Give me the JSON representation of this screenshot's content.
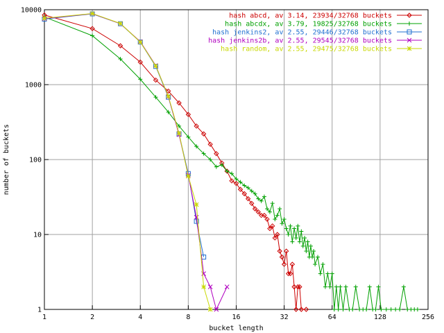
{
  "chart_data": {
    "type": "line",
    "title": "",
    "xlabel": "bucket length",
    "ylabel": "number of buckets",
    "xscale": "log2",
    "yscale": "log10",
    "xlim": [
      1,
      256
    ],
    "ylim": [
      1,
      10000
    ],
    "grid": true,
    "legend_position": "top-right",
    "x_ticks": [
      "1",
      "2",
      "4",
      "8",
      "16",
      "32",
      "64",
      "128",
      "256"
    ],
    "y_ticks": [
      "1",
      "10",
      "100",
      "1000",
      "10000"
    ],
    "series": [
      {
        "name": "hash abcd, av 3.14, 23934/32768 buckets",
        "color": "#cc0000",
        "marker": "diamond",
        "points": [
          [
            1,
            8500
          ],
          [
            2,
            5600
          ],
          [
            3,
            3300
          ],
          [
            4,
            2000
          ],
          [
            5,
            1150
          ],
          [
            6,
            820
          ],
          [
            7,
            570
          ],
          [
            8,
            400
          ],
          [
            9,
            280
          ],
          [
            10,
            220
          ],
          [
            11,
            160
          ],
          [
            12,
            120
          ],
          [
            13,
            90
          ],
          [
            14,
            70
          ],
          [
            15,
            52
          ],
          [
            16,
            48
          ],
          [
            17,
            40
          ],
          [
            18,
            35
          ],
          [
            19,
            30
          ],
          [
            20,
            26
          ],
          [
            21,
            22
          ],
          [
            22,
            20
          ],
          [
            23,
            18
          ],
          [
            24,
            18
          ],
          [
            25,
            16
          ],
          [
            26,
            12
          ],
          [
            27,
            13
          ],
          [
            28,
            9
          ],
          [
            29,
            10
          ],
          [
            30,
            6
          ],
          [
            31,
            5
          ],
          [
            32,
            4
          ],
          [
            33,
            6
          ],
          [
            34,
            3
          ],
          [
            35,
            3
          ],
          [
            36,
            4
          ],
          [
            37,
            2
          ],
          [
            38,
            1
          ],
          [
            39,
            2
          ],
          [
            40,
            2
          ],
          [
            41,
            1
          ],
          [
            44,
            1
          ]
        ]
      },
      {
        "name": "hash abcdx, av 3.79, 19825/32768 buckets",
        "color": "#00a000",
        "marker": "plus",
        "points": [
          [
            1,
            8000
          ],
          [
            2,
            4500
          ],
          [
            3,
            2200
          ],
          [
            4,
            1180
          ],
          [
            5,
            680
          ],
          [
            6,
            430
          ],
          [
            7,
            280
          ],
          [
            8,
            200
          ],
          [
            9,
            150
          ],
          [
            10,
            120
          ],
          [
            11,
            100
          ],
          [
            12,
            80
          ],
          [
            13,
            85
          ],
          [
            14,
            70
          ],
          [
            15,
            65
          ],
          [
            16,
            55
          ],
          [
            17,
            50
          ],
          [
            18,
            45
          ],
          [
            19,
            42
          ],
          [
            20,
            38
          ],
          [
            21,
            35
          ],
          [
            22,
            30
          ],
          [
            23,
            28
          ],
          [
            24,
            32
          ],
          [
            25,
            22
          ],
          [
            26,
            20
          ],
          [
            27,
            26
          ],
          [
            28,
            16
          ],
          [
            29,
            18
          ],
          [
            30,
            22
          ],
          [
            31,
            14
          ],
          [
            32,
            16
          ],
          [
            33,
            12
          ],
          [
            34,
            10
          ],
          [
            35,
            13
          ],
          [
            36,
            8
          ],
          [
            37,
            12
          ],
          [
            38,
            9
          ],
          [
            39,
            13
          ],
          [
            40,
            8
          ],
          [
            41,
            11
          ],
          [
            42,
            7
          ],
          [
            43,
            9
          ],
          [
            44,
            6
          ],
          [
            45,
            8
          ],
          [
            46,
            5
          ],
          [
            47,
            7
          ],
          [
            48,
            5
          ],
          [
            49,
            6
          ],
          [
            50,
            4
          ],
          [
            52,
            5
          ],
          [
            54,
            3
          ],
          [
            56,
            4
          ],
          [
            58,
            2
          ],
          [
            60,
            3
          ],
          [
            62,
            2
          ],
          [
            64,
            3
          ],
          [
            66,
            1
          ],
          [
            68,
            2
          ],
          [
            70,
            1
          ],
          [
            72,
            2
          ],
          [
            75,
            1
          ],
          [
            78,
            2
          ],
          [
            82,
            1
          ],
          [
            86,
            1
          ],
          [
            90,
            2
          ],
          [
            95,
            1
          ],
          [
            100,
            1
          ],
          [
            105,
            1
          ],
          [
            110,
            2
          ],
          [
            115,
            1
          ],
          [
            120,
            1
          ],
          [
            125,
            2
          ],
          [
            130,
            1
          ],
          [
            140,
            1
          ],
          [
            150,
            1
          ],
          [
            160,
            1
          ],
          [
            170,
            1
          ],
          [
            180,
            2
          ],
          [
            190,
            1
          ],
          [
            200,
            1
          ],
          [
            210,
            1
          ],
          [
            220,
            1
          ]
        ]
      },
      {
        "name": "hash jenkins2, av 2.55, 29446/32768 buckets",
        "color": "#1f6fd0",
        "marker": "square",
        "points": [
          [
            1,
            7500
          ],
          [
            2,
            8800
          ],
          [
            3,
            6500
          ],
          [
            4,
            3700
          ],
          [
            5,
            1750
          ],
          [
            6,
            680
          ],
          [
            7,
            220
          ],
          [
            8,
            65
          ],
          [
            9,
            15
          ],
          [
            10,
            5
          ]
        ]
      },
      {
        "name": "hash jenkins2b, av 2.55, 29545/32768 buckets",
        "color": "#b000c0",
        "marker": "cross",
        "points": [
          [
            1,
            7600
          ],
          [
            2,
            8850
          ],
          [
            3,
            6500
          ],
          [
            4,
            3750
          ],
          [
            5,
            1800
          ],
          [
            6,
            690
          ],
          [
            7,
            215
          ],
          [
            8,
            62
          ],
          [
            9,
            17
          ],
          [
            10,
            3
          ],
          [
            11,
            2
          ],
          [
            12,
            1
          ],
          [
            14,
            2
          ]
        ]
      },
      {
        "name": "hash random, av 2.55, 29475/32768 buckets",
        "color": "#c8d800",
        "marker": "star",
        "points": [
          [
            1,
            7700
          ],
          [
            2,
            8900
          ],
          [
            3,
            6550
          ],
          [
            4,
            3700
          ],
          [
            5,
            1780
          ],
          [
            6,
            700
          ],
          [
            7,
            225
          ],
          [
            8,
            60
          ],
          [
            9,
            25
          ],
          [
            10,
            2
          ],
          [
            11,
            1
          ]
        ]
      }
    ]
  }
}
